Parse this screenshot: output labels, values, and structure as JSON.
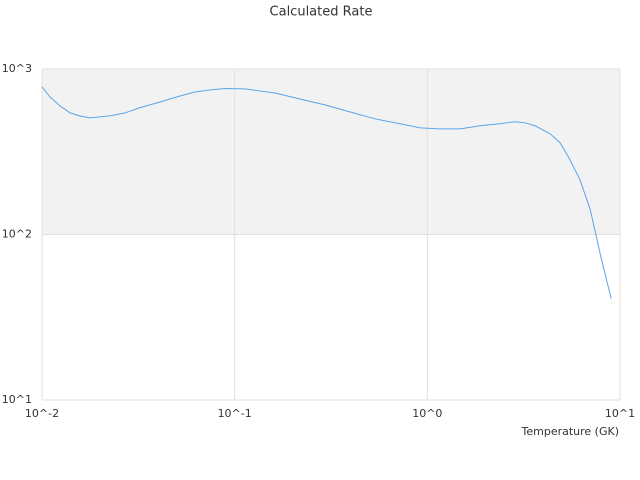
{
  "chart_data": {
    "type": "line",
    "title": "Calculated Rate",
    "x_label": "Temperature (GK)",
    "x_scale": "log",
    "y_scale": "log",
    "xlim": [
      0.01,
      10
    ],
    "ylim": [
      10,
      1000
    ],
    "xticks": [
      {
        "value": 0.01,
        "label": "10^-2"
      },
      {
        "value": 0.1,
        "label": "10^-1"
      },
      {
        "value": 1,
        "label": "10^0"
      },
      {
        "value": 10,
        "label": "10^1"
      }
    ],
    "yticks": [
      {
        "value": 10,
        "label": "10^1"
      },
      {
        "value": 100,
        "label": "10^2"
      },
      {
        "value": 1000,
        "label": "10^3"
      }
    ],
    "grid": true,
    "band_color": "#f2f2f2",
    "series": [
      {
        "color": "#5aa5e8",
        "x": [
          0.01,
          0.011,
          0.0124,
          0.014,
          0.0157,
          0.0177,
          0.0225,
          0.027,
          0.032,
          0.041,
          0.052,
          0.062,
          0.074,
          0.089,
          0.113,
          0.135,
          0.162,
          0.218,
          0.294,
          0.396,
          0.535,
          0.72,
          0.92,
          1.16,
          1.48,
          1.88,
          2.38,
          2.85,
          3.21,
          3.62,
          4.34,
          4.89,
          5.5,
          6.2,
          7.0,
          7.9,
          9.0
        ],
        "values": [
          780,
          678,
          598,
          543,
          521,
          507,
          521,
          543,
          582,
          632,
          687,
          726,
          747,
          763,
          758,
          737,
          716,
          659,
          607,
          551,
          500,
          467,
          441,
          435,
          435,
          454,
          467,
          480,
          473,
          454,
          406,
          358,
          283,
          214,
          142,
          76,
          41
        ]
      }
    ]
  }
}
